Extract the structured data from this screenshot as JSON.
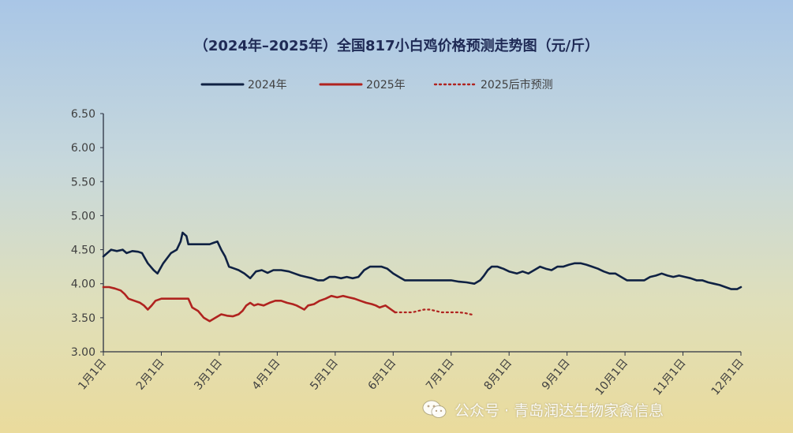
{
  "chart_data": {
    "type": "line",
    "title": "（2024年–2025年）全国817小白鸡价格预测走势图（元/斤）",
    "xlabel": "",
    "ylabel": "",
    "ylim": [
      3.0,
      6.5
    ],
    "xlim": [
      "1月1日",
      "12月1日"
    ],
    "yticks": [
      "6.50",
      "6.00",
      "5.50",
      "5.00",
      "4.50",
      "4.00",
      "3.50",
      "3.00"
    ],
    "xticks": [
      "1月1日",
      "2月1日",
      "3月1日",
      "4月1日",
      "5月1日",
      "6月1日",
      "7月1日",
      "8月1日",
      "9月1日",
      "10月1日",
      "11月1日",
      "12月1日"
    ],
    "grid": false,
    "legend": "top",
    "colors": {
      "2024": "#0f2143",
      "2025": "#b0231f",
      "forecast": "#b0231f"
    },
    "series": [
      {
        "name": "2024年",
        "style": "solid",
        "points": [
          [
            0.0,
            4.4
          ],
          [
            0.1,
            4.45
          ],
          [
            0.2,
            4.5
          ],
          [
            0.35,
            4.48
          ],
          [
            0.5,
            4.5
          ],
          [
            0.6,
            4.45
          ],
          [
            0.75,
            4.48
          ],
          [
            0.9,
            4.47
          ],
          [
            1.0,
            4.45
          ],
          [
            1.05,
            4.4
          ],
          [
            1.15,
            4.3
          ],
          [
            1.3,
            4.2
          ],
          [
            1.4,
            4.15
          ],
          [
            1.55,
            4.3
          ],
          [
            1.75,
            4.45
          ],
          [
            1.9,
            4.5
          ],
          [
            2.0,
            4.62
          ],
          [
            2.05,
            4.75
          ],
          [
            2.15,
            4.7
          ],
          [
            2.2,
            4.58
          ],
          [
            2.4,
            4.58
          ],
          [
            2.6,
            4.58
          ],
          [
            2.75,
            4.58
          ],
          [
            2.85,
            4.6
          ],
          [
            2.95,
            4.62
          ],
          [
            3.05,
            4.5
          ],
          [
            3.15,
            4.4
          ],
          [
            3.25,
            4.25
          ],
          [
            3.4,
            4.22
          ],
          [
            3.5,
            4.2
          ],
          [
            3.65,
            4.15
          ],
          [
            3.8,
            4.08
          ],
          [
            3.95,
            4.18
          ],
          [
            4.1,
            4.2
          ],
          [
            4.25,
            4.16
          ],
          [
            4.4,
            4.2
          ],
          [
            4.6,
            4.2
          ],
          [
            4.8,
            4.18
          ],
          [
            4.95,
            4.15
          ],
          [
            5.1,
            4.12
          ],
          [
            5.25,
            4.1
          ],
          [
            5.4,
            4.08
          ],
          [
            5.55,
            4.05
          ],
          [
            5.7,
            4.05
          ],
          [
            5.85,
            4.1
          ],
          [
            6.0,
            4.1
          ],
          [
            6.15,
            4.08
          ],
          [
            6.3,
            4.1
          ],
          [
            6.45,
            4.08
          ],
          [
            6.6,
            4.1
          ],
          [
            6.75,
            4.2
          ],
          [
            6.9,
            4.25
          ],
          [
            7.05,
            4.25
          ],
          [
            7.2,
            4.25
          ],
          [
            7.35,
            4.22
          ],
          [
            7.5,
            4.15
          ],
          [
            7.65,
            4.1
          ],
          [
            7.8,
            4.05
          ],
          [
            8.0,
            4.05
          ],
          [
            8.2,
            4.05
          ],
          [
            8.4,
            4.05
          ],
          [
            8.6,
            4.05
          ],
          [
            8.8,
            4.05
          ],
          [
            9.0,
            4.05
          ],
          [
            9.2,
            4.03
          ],
          [
            9.4,
            4.02
          ],
          [
            9.6,
            4.0
          ],
          [
            9.75,
            4.05
          ],
          [
            9.85,
            4.12
          ],
          [
            9.95,
            4.2
          ],
          [
            10.05,
            4.25
          ],
          [
            10.2,
            4.25
          ],
          [
            10.35,
            4.22
          ],
          [
            10.5,
            4.18
          ],
          [
            10.7,
            4.15
          ],
          [
            10.85,
            4.18
          ],
          [
            11.0,
            4.15
          ],
          [
            11.15,
            4.2
          ],
          [
            11.3,
            4.25
          ],
          [
            11.45,
            4.22
          ],
          [
            11.6,
            4.2
          ],
          [
            11.75,
            4.25
          ],
          [
            11.9,
            4.25
          ],
          [
            12.05,
            4.28
          ],
          [
            12.2,
            4.3
          ],
          [
            12.35,
            4.3
          ],
          [
            12.5,
            4.28
          ],
          [
            12.65,
            4.25
          ],
          [
            12.8,
            4.22
          ],
          [
            12.95,
            4.18
          ],
          [
            13.1,
            4.15
          ],
          [
            13.25,
            4.15
          ],
          [
            13.4,
            4.1
          ],
          [
            13.55,
            4.05
          ],
          [
            13.7,
            4.05
          ],
          [
            13.85,
            4.05
          ],
          [
            14.0,
            4.05
          ],
          [
            14.15,
            4.1
          ],
          [
            14.3,
            4.12
          ],
          [
            14.45,
            4.15
          ],
          [
            14.6,
            4.12
          ],
          [
            14.75,
            4.1
          ],
          [
            14.9,
            4.12
          ],
          [
            15.05,
            4.1
          ],
          [
            15.2,
            4.08
          ],
          [
            15.35,
            4.05
          ],
          [
            15.5,
            4.05
          ],
          [
            15.65,
            4.02
          ],
          [
            15.8,
            4.0
          ],
          [
            15.95,
            3.98
          ],
          [
            16.1,
            3.95
          ],
          [
            16.25,
            3.92
          ],
          [
            16.4,
            3.92
          ],
          [
            16.5,
            3.95
          ]
        ]
      },
      {
        "name": "2025年",
        "style": "solid",
        "points": [
          [
            0.0,
            3.95
          ],
          [
            0.15,
            3.95
          ],
          [
            0.3,
            3.93
          ],
          [
            0.45,
            3.9
          ],
          [
            0.55,
            3.85
          ],
          [
            0.65,
            3.78
          ],
          [
            0.8,
            3.75
          ],
          [
            0.95,
            3.72
          ],
          [
            1.05,
            3.68
          ],
          [
            1.15,
            3.62
          ],
          [
            1.25,
            3.68
          ],
          [
            1.35,
            3.75
          ],
          [
            1.5,
            3.78
          ],
          [
            1.7,
            3.78
          ],
          [
            1.9,
            3.78
          ],
          [
            2.05,
            3.78
          ],
          [
            2.2,
            3.78
          ],
          [
            2.3,
            3.65
          ],
          [
            2.45,
            3.6
          ],
          [
            2.6,
            3.5
          ],
          [
            2.75,
            3.45
          ],
          [
            2.9,
            3.5
          ],
          [
            3.05,
            3.55
          ],
          [
            3.2,
            3.53
          ],
          [
            3.35,
            3.52
          ],
          [
            3.5,
            3.55
          ],
          [
            3.6,
            3.6
          ],
          [
            3.7,
            3.68
          ],
          [
            3.8,
            3.72
          ],
          [
            3.9,
            3.68
          ],
          [
            4.0,
            3.7
          ],
          [
            4.15,
            3.68
          ],
          [
            4.3,
            3.72
          ],
          [
            4.45,
            3.75
          ],
          [
            4.6,
            3.75
          ],
          [
            4.75,
            3.72
          ],
          [
            4.9,
            3.7
          ],
          [
            5.0,
            3.68
          ],
          [
            5.1,
            3.65
          ],
          [
            5.2,
            3.62
          ],
          [
            5.3,
            3.68
          ],
          [
            5.45,
            3.7
          ],
          [
            5.6,
            3.75
          ],
          [
            5.75,
            3.78
          ],
          [
            5.9,
            3.82
          ],
          [
            6.05,
            3.8
          ],
          [
            6.2,
            3.82
          ],
          [
            6.35,
            3.8
          ],
          [
            6.5,
            3.78
          ],
          [
            6.65,
            3.75
          ],
          [
            6.8,
            3.72
          ],
          [
            6.95,
            3.7
          ],
          [
            7.05,
            3.68
          ],
          [
            7.15,
            3.65
          ],
          [
            7.3,
            3.68
          ],
          [
            7.45,
            3.62
          ],
          [
            7.55,
            3.58
          ]
        ]
      },
      {
        "name": "2025后市预测",
        "style": "dotted",
        "points": [
          [
            7.55,
            3.58
          ],
          [
            7.7,
            3.58
          ],
          [
            7.85,
            3.58
          ],
          [
            8.0,
            3.58
          ],
          [
            8.15,
            3.6
          ],
          [
            8.3,
            3.62
          ],
          [
            8.45,
            3.62
          ],
          [
            8.6,
            3.6
          ],
          [
            8.75,
            3.58
          ],
          [
            8.9,
            3.58
          ],
          [
            9.05,
            3.58
          ],
          [
            9.2,
            3.58
          ],
          [
            9.35,
            3.57
          ],
          [
            9.5,
            3.55
          ],
          [
            9.6,
            3.54
          ]
        ]
      }
    ]
  },
  "watermark": {
    "text": "公众号 · 青岛润达生物家禽信息",
    "icon": "wechat-icon"
  }
}
